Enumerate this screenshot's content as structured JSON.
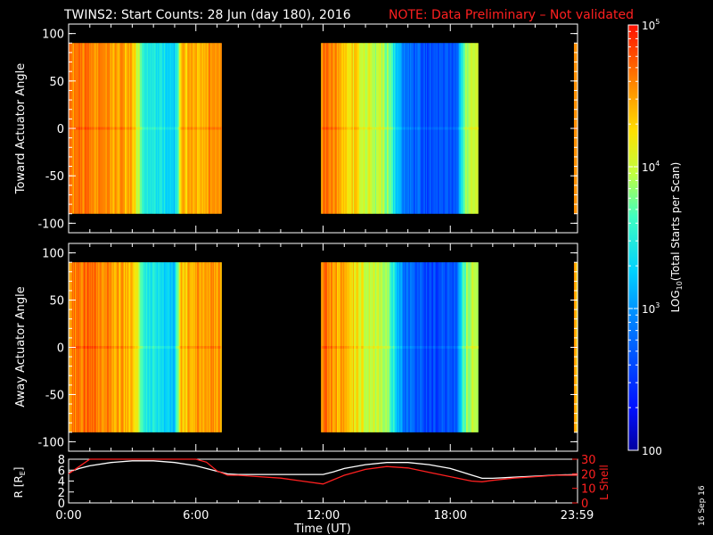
{
  "title": {
    "main": "TWINS2: Start Counts: 28 Jun (day 180), 2016",
    "note": "NOTE: Data Preliminary – Not validated"
  },
  "date_stamp": "16 Sep 16",
  "colors": {
    "background": "#000000",
    "axis": "#ffffff",
    "note": "#ff2020",
    "lshell": "#ff2020",
    "r_line": "#ffffff"
  },
  "colorbar": {
    "label": "LOG10(Total Starts per Scan)",
    "label_main": "LOG",
    "label_sub": "10",
    "label_rest": "(Total Starts per Scan)",
    "ticks": [
      {
        "base": "100",
        "exp": ""
      },
      {
        "base": "10",
        "exp": "3"
      },
      {
        "base": "10",
        "exp": "4"
      },
      {
        "base": "10",
        "exp": "5"
      }
    ],
    "range": [
      100,
      100000
    ],
    "scale": "log"
  },
  "chart_data": [
    {
      "type": "heatmap",
      "name": "toward",
      "ylabel": "Toward Actuator Angle",
      "ylim": [
        -110,
        110
      ],
      "yticks": [
        -100,
        -50,
        0,
        50,
        100
      ],
      "xlim": [
        0,
        24
      ],
      "data_intervals_hours": [
        [
          0.0,
          7.2
        ],
        [
          11.9,
          19.3
        ],
        [
          23.83,
          24.0
        ]
      ],
      "angle_range": [
        -90,
        90
      ]
    },
    {
      "type": "heatmap",
      "name": "away",
      "ylabel": "Away Actuator Angle",
      "ylim": [
        -110,
        110
      ],
      "yticks": [
        -100,
        -50,
        0,
        50,
        100
      ],
      "xlim": [
        0,
        24
      ],
      "data_intervals_hours": [
        [
          0.0,
          7.2
        ],
        [
          11.9,
          19.3
        ],
        [
          23.83,
          24.0
        ]
      ],
      "angle_range": [
        -90,
        90
      ]
    },
    {
      "type": "line",
      "name": "orbit",
      "left_ylabel": "R [RE]",
      "left_ylabel_main": "R [R",
      "left_ylabel_sub": "E",
      "left_ylabel_end": "]",
      "left_ylim": [
        0,
        8
      ],
      "left_yticks": [
        0,
        2,
        4,
        6,
        8
      ],
      "right_ylabel": "L Shell",
      "right_ylim": [
        0,
        30
      ],
      "right_yticks": [
        0,
        10,
        20,
        30
      ],
      "xlabel": "Time (UT)",
      "xlim": [
        0,
        24
      ],
      "xticks": [
        {
          "value": 0,
          "label": "0:00"
        },
        {
          "value": 6,
          "label": "6:00"
        },
        {
          "value": 12,
          "label": "12:00"
        },
        {
          "value": 18,
          "label": "18:00"
        },
        {
          "value": 23.98,
          "label": "23:59"
        }
      ],
      "series": [
        {
          "name": "R [RE]",
          "axis": "left",
          "x": [
            0,
            0.5,
            1,
            2,
            3,
            4,
            5,
            6,
            7,
            7.5,
            8,
            9,
            10,
            11,
            11.5,
            12,
            12.5,
            13,
            14,
            15,
            16,
            17,
            18,
            19,
            19.5,
            20,
            21,
            22,
            23,
            24
          ],
          "y": [
            5.6,
            6.3,
            6.8,
            7.4,
            7.7,
            7.7,
            7.4,
            6.8,
            5.8,
            5.3,
            5.2,
            5.2,
            5.2,
            5.2,
            5.2,
            5.2,
            5.7,
            6.3,
            7.0,
            7.4,
            7.4,
            7.0,
            6.3,
            5.1,
            4.5,
            4.5,
            4.7,
            4.9,
            5.1,
            5.2
          ]
        },
        {
          "name": "L Shell",
          "axis": "right",
          "x": [
            0,
            0.5,
            1,
            2,
            6,
            6.5,
            7,
            7.5,
            8,
            9,
            10,
            11,
            12,
            12.5,
            13,
            14,
            15,
            16,
            17,
            18,
            19,
            19.5,
            20,
            21,
            22,
            23,
            24
          ],
          "y": [
            20,
            25,
            30,
            30,
            30,
            28,
            22,
            19,
            19,
            18,
            17,
            15,
            13,
            16,
            19,
            23,
            25,
            24,
            21,
            18,
            15,
            14.5,
            15.5,
            17,
            18,
            19,
            19
          ]
        }
      ]
    }
  ]
}
